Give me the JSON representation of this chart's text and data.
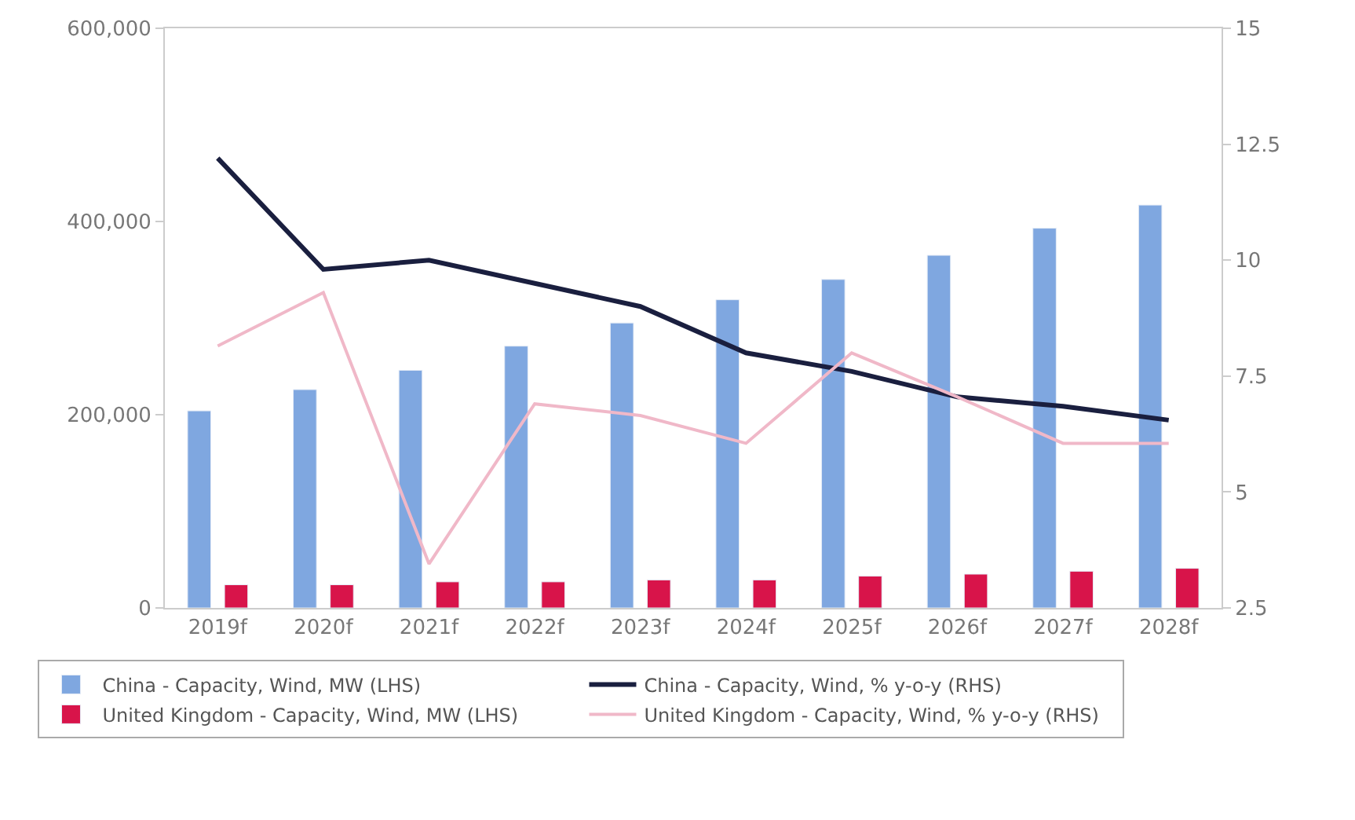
{
  "chart_data": {
    "type": "bar",
    "categories": [
      "2019f",
      "2020f",
      "2021f",
      "2022f",
      "2023f",
      "2024f",
      "2025f",
      "2026f",
      "2027f",
      "2028f"
    ],
    "series": [
      {
        "name": "China - Capacity, Wind, MW (LHS)",
        "color": "#7fa7e0",
        "values": [
          204000,
          226000,
          246000,
          271000,
          295000,
          319000,
          340000,
          365000,
          393000,
          417000
        ]
      },
      {
        "name": "China - Capacity, Wind, % y-o-y (RHS)",
        "type": "line",
        "axis": "y2",
        "color": "#1a1f3f",
        "values": [
          12.2,
          9.8,
          10.0,
          9.5,
          9.0,
          8.0,
          7.6,
          7.05,
          6.85,
          6.55
        ]
      },
      {
        "name": "United Kingdom - Capacity, Wind, MW (LHS)",
        "color": "#d8144a",
        "values": [
          24000,
          24000,
          27000,
          27000,
          29000,
          29000,
          33000,
          35000,
          38000,
          41000
        ]
      },
      {
        "name": "United Kingdom - Capacity, Wind, % y-o-y (RHS)",
        "type": "line",
        "axis": "y2",
        "color": "#f0b8c8",
        "values": [
          8.15,
          9.3,
          3.45,
          6.9,
          6.65,
          6.05,
          8.0,
          7.05,
          6.05,
          6.05
        ]
      }
    ],
    "ylim": [
      0,
      600000
    ],
    "yticks": [
      {
        "value": 0,
        "label": "0"
      },
      {
        "value": 200000,
        "label": "200,000"
      },
      {
        "value": 400000,
        "label": "400,000"
      },
      {
        "value": 600000,
        "label": "600,000"
      }
    ],
    "y2lim": [
      2.5,
      15
    ],
    "y2ticks": [
      2.5,
      5,
      7.5,
      10,
      12.5,
      15
    ],
    "legend": "bottom",
    "marker": "none",
    "line_style": "solid"
  }
}
